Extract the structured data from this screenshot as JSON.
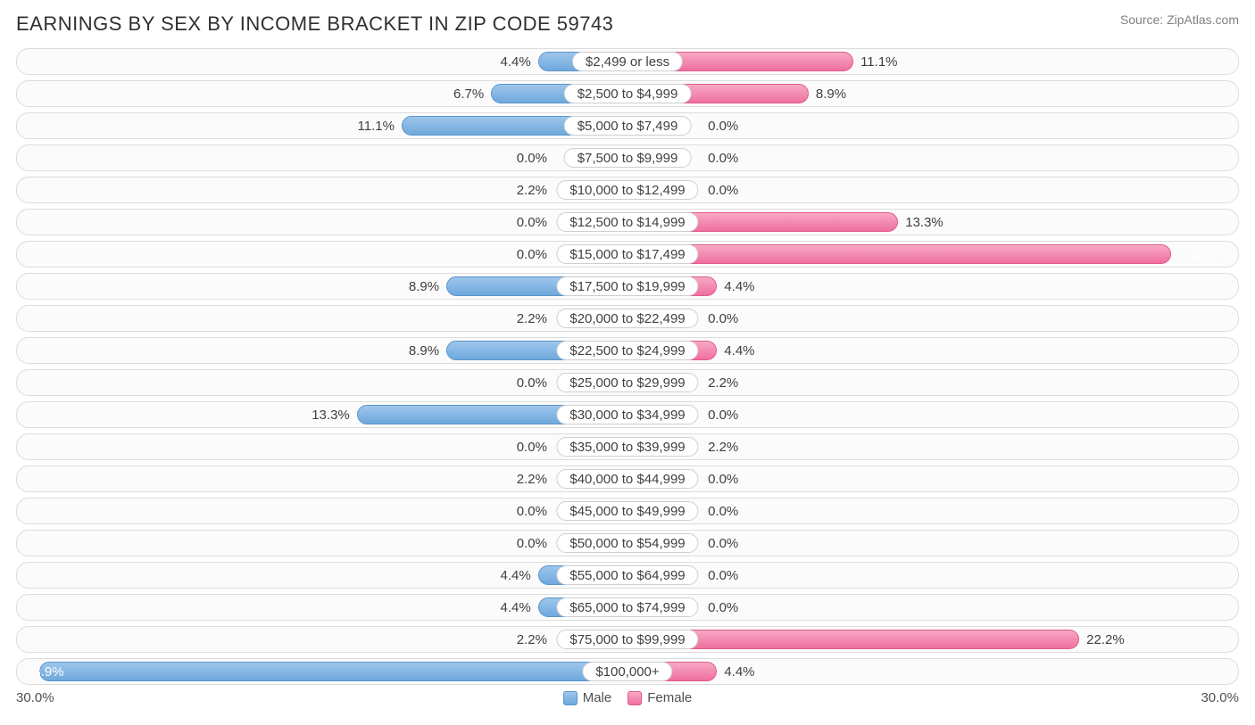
{
  "title": "EARNINGS BY SEX BY INCOME BRACKET IN ZIP CODE 59743",
  "source": "Source: ZipAtlas.com",
  "axis_max_label": "30.0%",
  "axis_max_value": 30.0,
  "min_bar_pct": 3.0,
  "label_inside_threshold": 24.0,
  "legend": {
    "male": "Male",
    "female": "Female"
  },
  "colors": {
    "male_top": "#9ec6ec",
    "male_bottom": "#6ea8dc",
    "male_border": "#5b95cc",
    "female_top": "#f7a8c4",
    "female_bottom": "#ef6f9f",
    "female_border": "#e05a8c",
    "row_border": "#dcdcdc",
    "row_bg": "#fbfbfb",
    "text": "#404040",
    "title": "#303030",
    "source": "#808080",
    "background": "#ffffff"
  },
  "rows": [
    {
      "label": "$2,499 or less",
      "male": 4.4,
      "female": 11.1
    },
    {
      "label": "$2,500 to $4,999",
      "male": 6.7,
      "female": 8.9
    },
    {
      "label": "$5,000 to $7,499",
      "male": 11.1,
      "female": 0.0
    },
    {
      "label": "$7,500 to $9,999",
      "male": 0.0,
      "female": 0.0
    },
    {
      "label": "$10,000 to $12,499",
      "male": 2.2,
      "female": 0.0
    },
    {
      "label": "$12,500 to $14,999",
      "male": 0.0,
      "female": 13.3
    },
    {
      "label": "$15,000 to $17,499",
      "male": 0.0,
      "female": 26.7
    },
    {
      "label": "$17,500 to $19,999",
      "male": 8.9,
      "female": 4.4
    },
    {
      "label": "$20,000 to $22,499",
      "male": 2.2,
      "female": 0.0
    },
    {
      "label": "$22,500 to $24,999",
      "male": 8.9,
      "female": 4.4
    },
    {
      "label": "$25,000 to $29,999",
      "male": 0.0,
      "female": 2.2
    },
    {
      "label": "$30,000 to $34,999",
      "male": 13.3,
      "female": 0.0
    },
    {
      "label": "$35,000 to $39,999",
      "male": 0.0,
      "female": 2.2
    },
    {
      "label": "$40,000 to $44,999",
      "male": 2.2,
      "female": 0.0
    },
    {
      "label": "$45,000 to $49,999",
      "male": 0.0,
      "female": 0.0
    },
    {
      "label": "$50,000 to $54,999",
      "male": 0.0,
      "female": 0.0
    },
    {
      "label": "$55,000 to $64,999",
      "male": 4.4,
      "female": 0.0
    },
    {
      "label": "$65,000 to $74,999",
      "male": 4.4,
      "female": 0.0
    },
    {
      "label": "$75,000 to $99,999",
      "male": 2.2,
      "female": 22.2
    },
    {
      "label": "$100,000+",
      "male": 28.9,
      "female": 4.4
    }
  ]
}
